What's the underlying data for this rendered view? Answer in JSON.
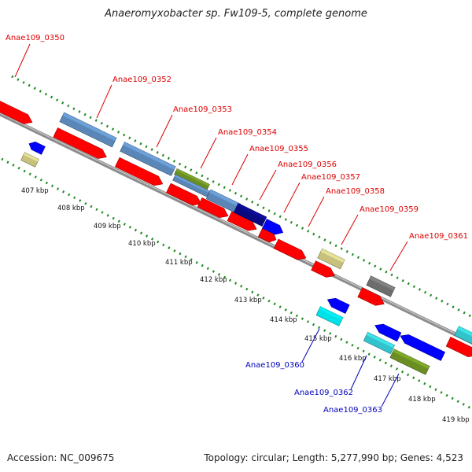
{
  "title": "Anaeromyxobacter sp. Fw109-5, complete genome",
  "footer": {
    "accession": "Accession: NC_009675",
    "topology": "Topology: circular; Length: 5,277,990 bp; Genes: 4,523"
  },
  "ticks": [
    "407 kbp",
    "408 kbp",
    "409 kbp",
    "410 kbp",
    "411 kbp",
    "412 kbp",
    "413 kbp",
    "414 kbp",
    "415 kbp",
    "416 kbp",
    "417 kbp",
    "418 kbp",
    "419 kbp"
  ],
  "colors": {
    "red": "#ff0000",
    "steelblue": "#5b87b8",
    "green": "#6b8e23",
    "navy": "#0a0a80",
    "blue": "#0000ff",
    "khaki": "#c8c17e",
    "gray": "#6d6d6d",
    "cyan": "#00e0e8",
    "teal": "#33c3cc",
    "label_red": "#dd0000",
    "label_blue": "#0000bb",
    "tick_green": "#1f8a1f"
  },
  "labels": {
    "top": [
      "Anae109_0350",
      "Anae109_0352",
      "Anae109_0353",
      "Anae109_0354",
      "Anae109_0355",
      "Anae109_0356",
      "Anae109_0357",
      "Anae109_0358",
      "Anae109_0359",
      "Anae109_0361"
    ],
    "bottom": [
      "Anae109_0360",
      "Anae109_0362",
      "Anae109_0363"
    ]
  }
}
